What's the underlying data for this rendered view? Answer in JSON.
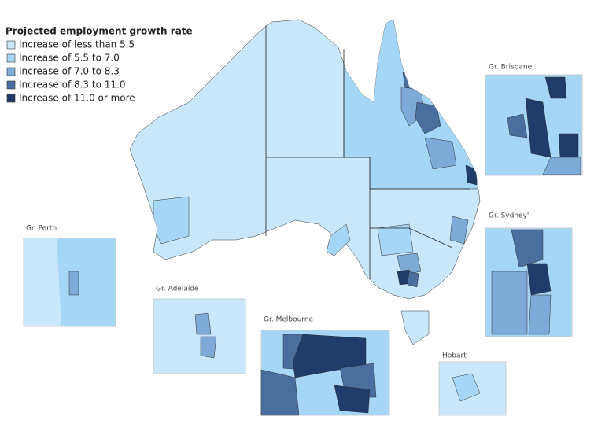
{
  "legend": {
    "title": "Projected employment growth rate",
    "items": [
      {
        "label": "Increase of less than 5.5",
        "color": "#c9e7fa"
      },
      {
        "label": "Increase of 5.5 to 7.0",
        "color": "#a6d6f6"
      },
      {
        "label": "Increase of 7.0 to 8.3",
        "color": "#7eaad7"
      },
      {
        "label": "Increase of 8.3 to 11.0",
        "color": "#4a6f9f"
      },
      {
        "label": "Increase of 11.0 or more",
        "color": "#203c6a"
      }
    ]
  },
  "insets": [
    {
      "label": "Gr. Brisbane"
    },
    {
      "label": "Gr. Sydney'"
    },
    {
      "label": "Gr. Perth"
    },
    {
      "label": "Gr. Adelaide"
    },
    {
      "label": "Gr. Melbourne"
    },
    {
      "label": "Hobart"
    }
  ]
}
